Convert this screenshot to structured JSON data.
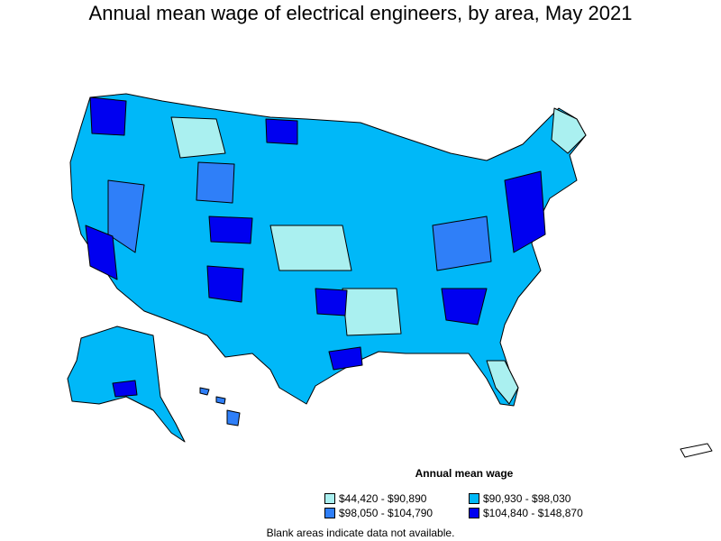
{
  "title": "Annual mean wage of electrical engineers, by area, May 2021",
  "legend": {
    "title": "Annual mean wage",
    "items": [
      {
        "label": "$44,420 - $90,890",
        "color": "#aaf0f0"
      },
      {
        "label": "$90,930 - $98,030",
        "color": "#00b8f8"
      },
      {
        "label": "$98,050 - $104,790",
        "color": "#2f7ff8"
      },
      {
        "label": "$104,840 - $148,870",
        "color": "#0000f0"
      }
    ]
  },
  "note": "Blank areas indicate data not available."
}
